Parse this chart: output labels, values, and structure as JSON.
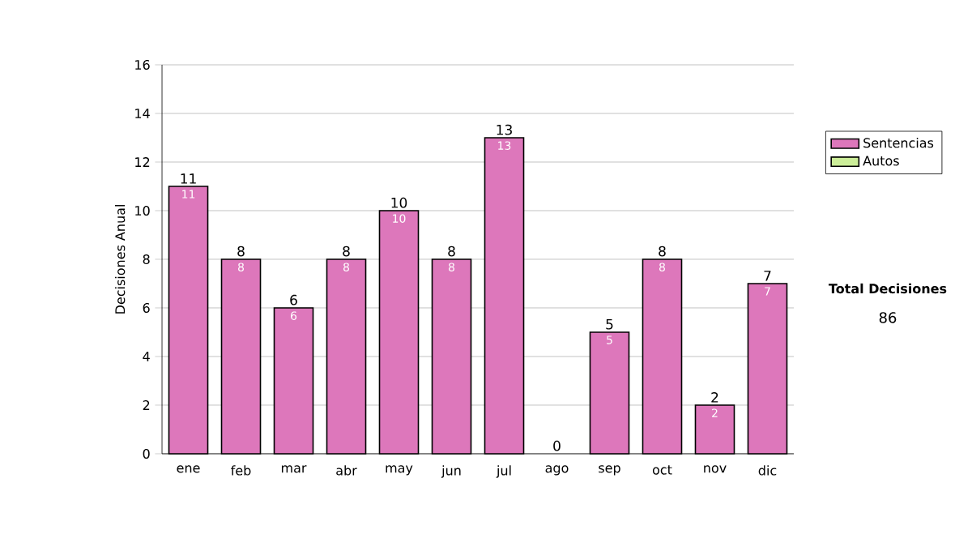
{
  "chart_data": {
    "type": "bar",
    "stacked": true,
    "ylabel": "Decisiones Anual",
    "categories": [
      "ene",
      "feb",
      "mar",
      "abr",
      "may",
      "jun",
      "jul",
      "ago",
      "sep",
      "oct",
      "nov",
      "dic"
    ],
    "series": [
      {
        "name": "Sentencias",
        "color": "#dd77bb",
        "values": [
          11,
          8,
          6,
          8,
          10,
          8,
          13,
          0,
          5,
          8,
          2,
          7
        ],
        "value_labels": [
          "11",
          "8",
          "6",
          "8",
          "10",
          "8",
          "13",
          null,
          "5",
          "8",
          "2",
          "7"
        ]
      },
      {
        "name": "Autos",
        "color": "#ccee99",
        "values": [
          0,
          0,
          0,
          0,
          0,
          0,
          0,
          0,
          0,
          0,
          0,
          0
        ]
      }
    ],
    "totals": [
      "11",
      "8",
      "6",
      "8",
      "10",
      "8",
      "13",
      "0",
      "5",
      "8",
      "2",
      "7"
    ],
    "ylim": [
      0,
      16
    ],
    "yticks": [
      0,
      2,
      4,
      6,
      8,
      10,
      12,
      14,
      16
    ],
    "grid": "y",
    "legend": "right",
    "annotations": [
      "Total Decisiones",
      "86"
    ]
  }
}
